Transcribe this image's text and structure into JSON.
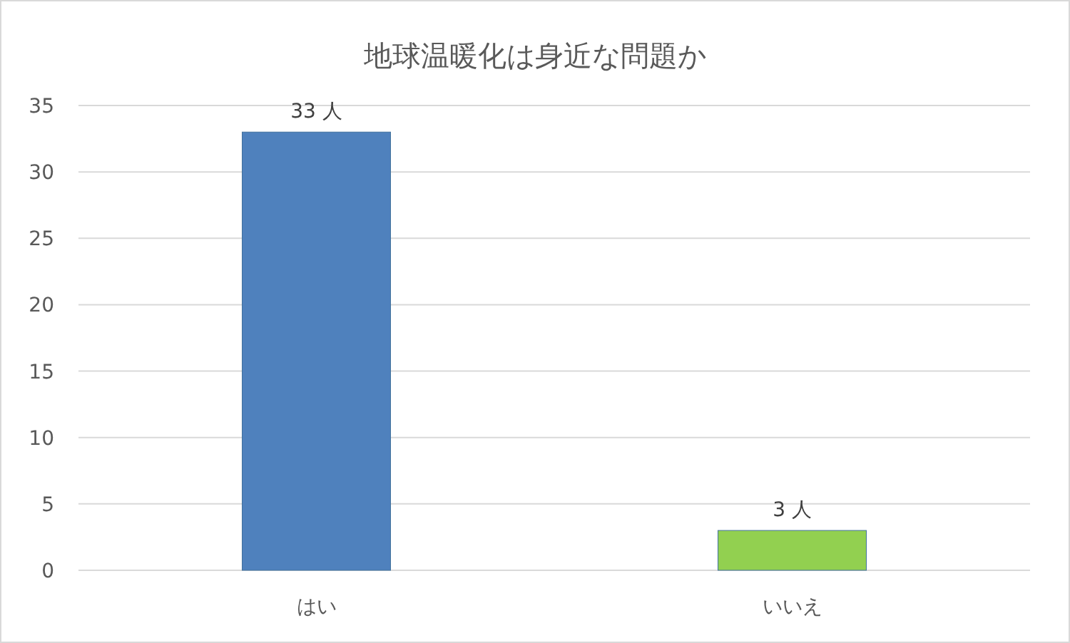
{
  "chart_data": {
    "type": "bar",
    "title": "地球温暖化は身近な問題か",
    "categories": [
      "はい",
      "いいえ"
    ],
    "values": [
      33,
      3
    ],
    "colors": [
      "#4f81bd",
      "#92d050"
    ],
    "value_labels": [
      "33 人",
      "3 人"
    ],
    "ylim": [
      0,
      35
    ],
    "yticks": [
      0,
      5,
      10,
      15,
      20,
      25,
      30,
      35
    ],
    "grid": "y"
  }
}
